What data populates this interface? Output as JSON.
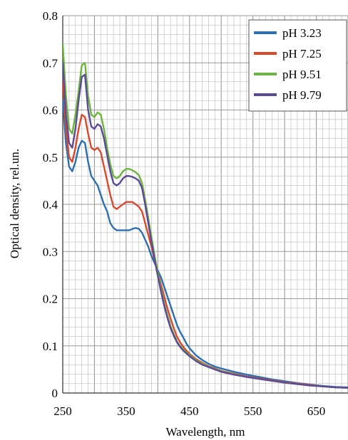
{
  "chart_data": {
    "type": "line",
    "xlabel": "Wavelength, nm",
    "ylabel": "Optical density, rel.un.",
    "xlim": [
      250,
      700
    ],
    "ylim": [
      0,
      0.8
    ],
    "x_ticks": [
      250,
      350,
      450,
      550,
      650
    ],
    "x_tick_labels": [
      "250",
      "350",
      "450",
      "550",
      "650"
    ],
    "y_ticks": [
      0,
      0.1,
      0.2,
      0.3,
      0.4,
      0.5,
      0.6,
      0.7,
      0.8
    ],
    "y_tick_labels": [
      "0",
      "0.1",
      "0.2",
      "0.3",
      "0.4",
      "0.5",
      "0.6",
      "0.7",
      "0.8"
    ],
    "grid": true,
    "legend_position": "top-right",
    "series": [
      {
        "name": "pH 3.23",
        "color": "#2e6fb0",
        "points": [
          [
            250,
            0.62
          ],
          [
            255,
            0.53
          ],
          [
            260,
            0.48
          ],
          [
            265,
            0.47
          ],
          [
            270,
            0.49
          ],
          [
            275,
            0.52
          ],
          [
            280,
            0.535
          ],
          [
            285,
            0.53
          ],
          [
            290,
            0.49
          ],
          [
            295,
            0.46
          ],
          [
            300,
            0.45
          ],
          [
            305,
            0.44
          ],
          [
            310,
            0.42
          ],
          [
            315,
            0.4
          ],
          [
            320,
            0.385
          ],
          [
            325,
            0.36
          ],
          [
            330,
            0.35
          ],
          [
            335,
            0.345
          ],
          [
            340,
            0.345
          ],
          [
            345,
            0.345
          ],
          [
            350,
            0.345
          ],
          [
            355,
            0.345
          ],
          [
            360,
            0.348
          ],
          [
            365,
            0.35
          ],
          [
            370,
            0.348
          ],
          [
            375,
            0.34
          ],
          [
            380,
            0.325
          ],
          [
            385,
            0.31
          ],
          [
            390,
            0.29
          ],
          [
            395,
            0.275
          ],
          [
            400,
            0.26
          ],
          [
            405,
            0.245
          ],
          [
            410,
            0.225
          ],
          [
            415,
            0.205
          ],
          [
            420,
            0.185
          ],
          [
            425,
            0.165
          ],
          [
            430,
            0.145
          ],
          [
            435,
            0.13
          ],
          [
            440,
            0.118
          ],
          [
            445,
            0.105
          ],
          [
            450,
            0.095
          ],
          [
            460,
            0.08
          ],
          [
            470,
            0.07
          ],
          [
            480,
            0.062
          ],
          [
            490,
            0.056
          ],
          [
            500,
            0.052
          ],
          [
            520,
            0.045
          ],
          [
            540,
            0.039
          ],
          [
            560,
            0.034
          ],
          [
            580,
            0.029
          ],
          [
            600,
            0.025
          ],
          [
            620,
            0.021
          ],
          [
            640,
            0.018
          ],
          [
            660,
            0.015
          ],
          [
            680,
            0.013
          ],
          [
            700,
            0.012
          ]
        ]
      },
      {
        "name": "pH 7.25",
        "color": "#d64a2e",
        "points": [
          [
            250,
            0.67
          ],
          [
            255,
            0.56
          ],
          [
            260,
            0.5
          ],
          [
            265,
            0.49
          ],
          [
            270,
            0.52
          ],
          [
            275,
            0.56
          ],
          [
            280,
            0.59
          ],
          [
            285,
            0.585
          ],
          [
            290,
            0.55
          ],
          [
            295,
            0.52
          ],
          [
            300,
            0.515
          ],
          [
            305,
            0.52
          ],
          [
            310,
            0.51
          ],
          [
            315,
            0.48
          ],
          [
            320,
            0.45
          ],
          [
            325,
            0.42
          ],
          [
            330,
            0.395
          ],
          [
            335,
            0.39
          ],
          [
            340,
            0.395
          ],
          [
            345,
            0.4
          ],
          [
            350,
            0.405
          ],
          [
            355,
            0.405
          ],
          [
            360,
            0.405
          ],
          [
            365,
            0.4
          ],
          [
            370,
            0.395
          ],
          [
            375,
            0.385
          ],
          [
            380,
            0.36
          ],
          [
            385,
            0.335
          ],
          [
            390,
            0.31
          ],
          [
            395,
            0.28
          ],
          [
            400,
            0.255
          ],
          [
            405,
            0.23
          ],
          [
            410,
            0.205
          ],
          [
            415,
            0.18
          ],
          [
            420,
            0.158
          ],
          [
            425,
            0.138
          ],
          [
            430,
            0.12
          ],
          [
            435,
            0.108
          ],
          [
            440,
            0.098
          ],
          [
            445,
            0.09
          ],
          [
            450,
            0.083
          ],
          [
            460,
            0.072
          ],
          [
            470,
            0.064
          ],
          [
            480,
            0.057
          ],
          [
            490,
            0.052
          ],
          [
            500,
            0.047
          ],
          [
            520,
            0.041
          ],
          [
            540,
            0.035
          ],
          [
            560,
            0.031
          ],
          [
            580,
            0.027
          ],
          [
            600,
            0.023
          ],
          [
            620,
            0.02
          ],
          [
            640,
            0.017
          ],
          [
            660,
            0.014
          ],
          [
            680,
            0.012
          ],
          [
            700,
            0.011
          ]
        ]
      },
      {
        "name": "pH 9.51",
        "color": "#6cb33f",
        "points": [
          [
            250,
            0.74
          ],
          [
            255,
            0.63
          ],
          [
            260,
            0.56
          ],
          [
            265,
            0.55
          ],
          [
            270,
            0.59
          ],
          [
            275,
            0.64
          ],
          [
            280,
            0.695
          ],
          [
            285,
            0.7
          ],
          [
            290,
            0.63
          ],
          [
            295,
            0.59
          ],
          [
            300,
            0.585
          ],
          [
            305,
            0.595
          ],
          [
            310,
            0.59
          ],
          [
            315,
            0.56
          ],
          [
            320,
            0.52
          ],
          [
            325,
            0.485
          ],
          [
            330,
            0.46
          ],
          [
            335,
            0.455
          ],
          [
            340,
            0.46
          ],
          [
            345,
            0.47
          ],
          [
            350,
            0.475
          ],
          [
            355,
            0.475
          ],
          [
            360,
            0.472
          ],
          [
            365,
            0.468
          ],
          [
            370,
            0.462
          ],
          [
            375,
            0.445
          ],
          [
            380,
            0.41
          ],
          [
            385,
            0.37
          ],
          [
            390,
            0.33
          ],
          [
            395,
            0.29
          ],
          [
            400,
            0.255
          ],
          [
            405,
            0.22
          ],
          [
            410,
            0.19
          ],
          [
            415,
            0.165
          ],
          [
            420,
            0.142
          ],
          [
            425,
            0.125
          ],
          [
            430,
            0.11
          ],
          [
            435,
            0.1
          ],
          [
            440,
            0.092
          ],
          [
            445,
            0.086
          ],
          [
            450,
            0.08
          ],
          [
            460,
            0.07
          ],
          [
            470,
            0.062
          ],
          [
            480,
            0.056
          ],
          [
            490,
            0.051
          ],
          [
            500,
            0.046
          ],
          [
            520,
            0.04
          ],
          [
            540,
            0.034
          ],
          [
            560,
            0.03
          ],
          [
            580,
            0.026
          ],
          [
            600,
            0.022
          ],
          [
            620,
            0.019
          ],
          [
            640,
            0.016
          ],
          [
            660,
            0.014
          ],
          [
            680,
            0.012
          ],
          [
            700,
            0.011
          ]
        ]
      },
      {
        "name": "pH 9.79",
        "color": "#5d4a96",
        "points": [
          [
            250,
            0.7
          ],
          [
            255,
            0.59
          ],
          [
            260,
            0.53
          ],
          [
            265,
            0.52
          ],
          [
            270,
            0.56
          ],
          [
            275,
            0.62
          ],
          [
            280,
            0.67
          ],
          [
            285,
            0.675
          ],
          [
            290,
            0.6
          ],
          [
            295,
            0.565
          ],
          [
            300,
            0.56
          ],
          [
            305,
            0.57
          ],
          [
            310,
            0.565
          ],
          [
            315,
            0.54
          ],
          [
            320,
            0.505
          ],
          [
            325,
            0.47
          ],
          [
            330,
            0.445
          ],
          [
            335,
            0.44
          ],
          [
            340,
            0.445
          ],
          [
            345,
            0.455
          ],
          [
            350,
            0.46
          ],
          [
            355,
            0.46
          ],
          [
            360,
            0.458
          ],
          [
            365,
            0.455
          ],
          [
            370,
            0.45
          ],
          [
            375,
            0.435
          ],
          [
            380,
            0.4
          ],
          [
            385,
            0.36
          ],
          [
            390,
            0.32
          ],
          [
            395,
            0.282
          ],
          [
            400,
            0.248
          ],
          [
            405,
            0.215
          ],
          [
            410,
            0.185
          ],
          [
            415,
            0.16
          ],
          [
            420,
            0.138
          ],
          [
            425,
            0.122
          ],
          [
            430,
            0.108
          ],
          [
            435,
            0.098
          ],
          [
            440,
            0.09
          ],
          [
            445,
            0.084
          ],
          [
            450,
            0.078
          ],
          [
            460,
            0.068
          ],
          [
            470,
            0.06
          ],
          [
            480,
            0.055
          ],
          [
            490,
            0.05
          ],
          [
            500,
            0.045
          ],
          [
            520,
            0.039
          ],
          [
            540,
            0.034
          ],
          [
            560,
            0.03
          ],
          [
            580,
            0.026
          ],
          [
            600,
            0.022
          ],
          [
            620,
            0.019
          ],
          [
            640,
            0.016
          ],
          [
            660,
            0.014
          ],
          [
            680,
            0.012
          ],
          [
            700,
            0.011
          ]
        ]
      }
    ]
  }
}
